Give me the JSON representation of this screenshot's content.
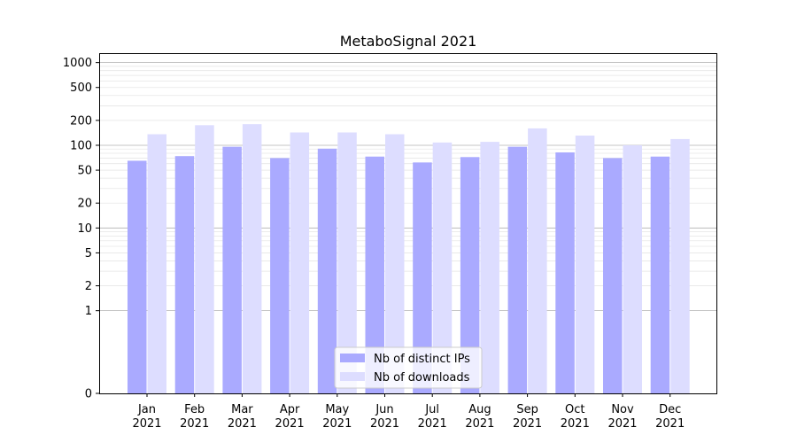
{
  "chart_data": {
    "type": "bar",
    "title": "MetaboSignal 2021",
    "xlabel": "",
    "ylabel": "",
    "y_scale": "symlog",
    "ylim": [
      0,
      1300
    ],
    "y_ticks": [
      0,
      1,
      2,
      5,
      10,
      20,
      50,
      100,
      200,
      500,
      1000
    ],
    "grid": true,
    "legend_position": "bottom-center",
    "categories": [
      {
        "month": "Jan",
        "year": "2021"
      },
      {
        "month": "Feb",
        "year": "2021"
      },
      {
        "month": "Mar",
        "year": "2021"
      },
      {
        "month": "Apr",
        "year": "2021"
      },
      {
        "month": "May",
        "year": "2021"
      },
      {
        "month": "Jun",
        "year": "2021"
      },
      {
        "month": "Jul",
        "year": "2021"
      },
      {
        "month": "Aug",
        "year": "2021"
      },
      {
        "month": "Sep",
        "year": "2021"
      },
      {
        "month": "Oct",
        "year": "2021"
      },
      {
        "month": "Nov",
        "year": "2021"
      },
      {
        "month": "Dec",
        "year": "2021"
      }
    ],
    "series": [
      {
        "name": "Nb of distinct IPs",
        "color": "#aaaaff",
        "values": [
          65,
          74,
          96,
          70,
          91,
          73,
          62,
          72,
          96,
          82,
          70,
          73
        ]
      },
      {
        "name": "Nb of downloads",
        "color": "#ddddff",
        "values": [
          136,
          175,
          180,
          143,
          143,
          136,
          108,
          110,
          160,
          131,
          100,
          119
        ]
      }
    ]
  }
}
